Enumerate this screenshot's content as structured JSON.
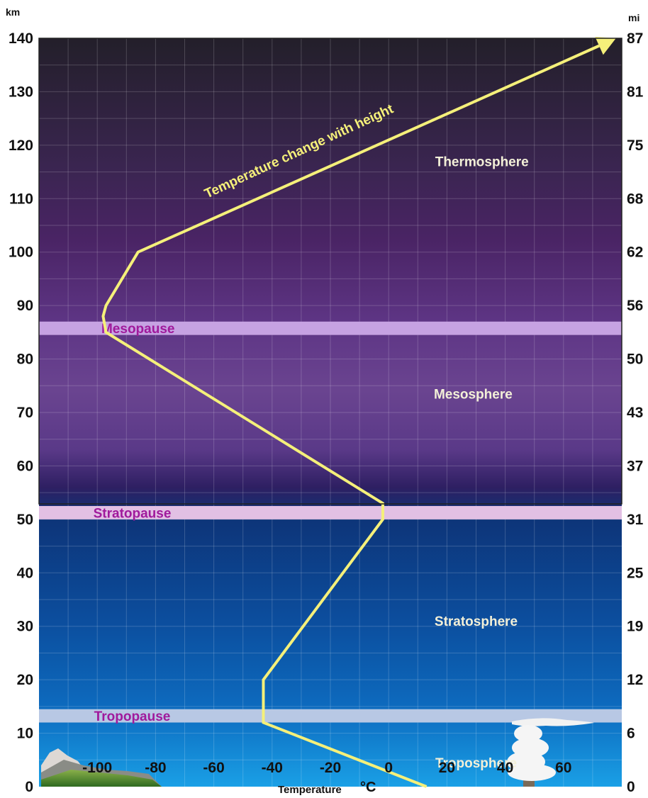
{
  "chart_data": {
    "type": "line",
    "xlabel": "Temperature",
    "xlabel_unit": "°C",
    "ylabel_left": "km",
    "ylabel_right": "mi",
    "xlim": [
      -120,
      80
    ],
    "ylim": [
      0,
      140
    ],
    "x_ticks": [
      -100,
      -80,
      -60,
      -40,
      -20,
      0,
      20,
      40,
      60
    ],
    "y_ticks_left": [
      0,
      10,
      20,
      30,
      40,
      50,
      60,
      70,
      80,
      90,
      100,
      110,
      120,
      130,
      140
    ],
    "y_ticks_right": [
      "0",
      "6",
      "12",
      "19",
      "25",
      "31",
      "37",
      "43",
      "50",
      "56",
      "62",
      "68",
      "75",
      "81",
      "87"
    ],
    "grid": true,
    "series": [
      {
        "x": [
          13,
          -43,
          -43,
          -2,
          -2,
          -97,
          -98,
          -97,
          -86,
          78
        ],
        "y": [
          0,
          12,
          20,
          50,
          53,
          85,
          88,
          90,
          100,
          140
        ],
        "color": "#f5f07a"
      }
    ],
    "layers": [
      {
        "label": "Troposphere",
        "x": 30,
        "y": 4.5
      },
      {
        "label": "Stratosphere",
        "x": 30,
        "y": 31
      },
      {
        "label": "Mesosphere",
        "x": 29,
        "y": 73.5
      },
      {
        "label": "Thermosphere",
        "x": 32,
        "y": 117
      }
    ],
    "pauses": [
      {
        "label": "Tropopause",
        "y_min": 12,
        "y_max": 14.5,
        "color": "#b8c8e4"
      },
      {
        "label": "Stratopause",
        "y_min": 50,
        "y_max": 52.5,
        "color": "#e2c0e4"
      },
      {
        "label": "Mesopause",
        "y_min": 84.5,
        "y_max": 87,
        "color": "#c6a2e2"
      }
    ],
    "annotation": "Temperature change with height",
    "colors": {
      "series_line": "#f5f07a",
      "pause_label": "#a01a9c",
      "layer_label": "#f3f0d8",
      "sky_bottom": "#1aa0e6",
      "sky_stratosphere": "#0a3f8e",
      "sky_mesosphere": "#6a3f8e",
      "sky_top": "#231f2a"
    }
  }
}
